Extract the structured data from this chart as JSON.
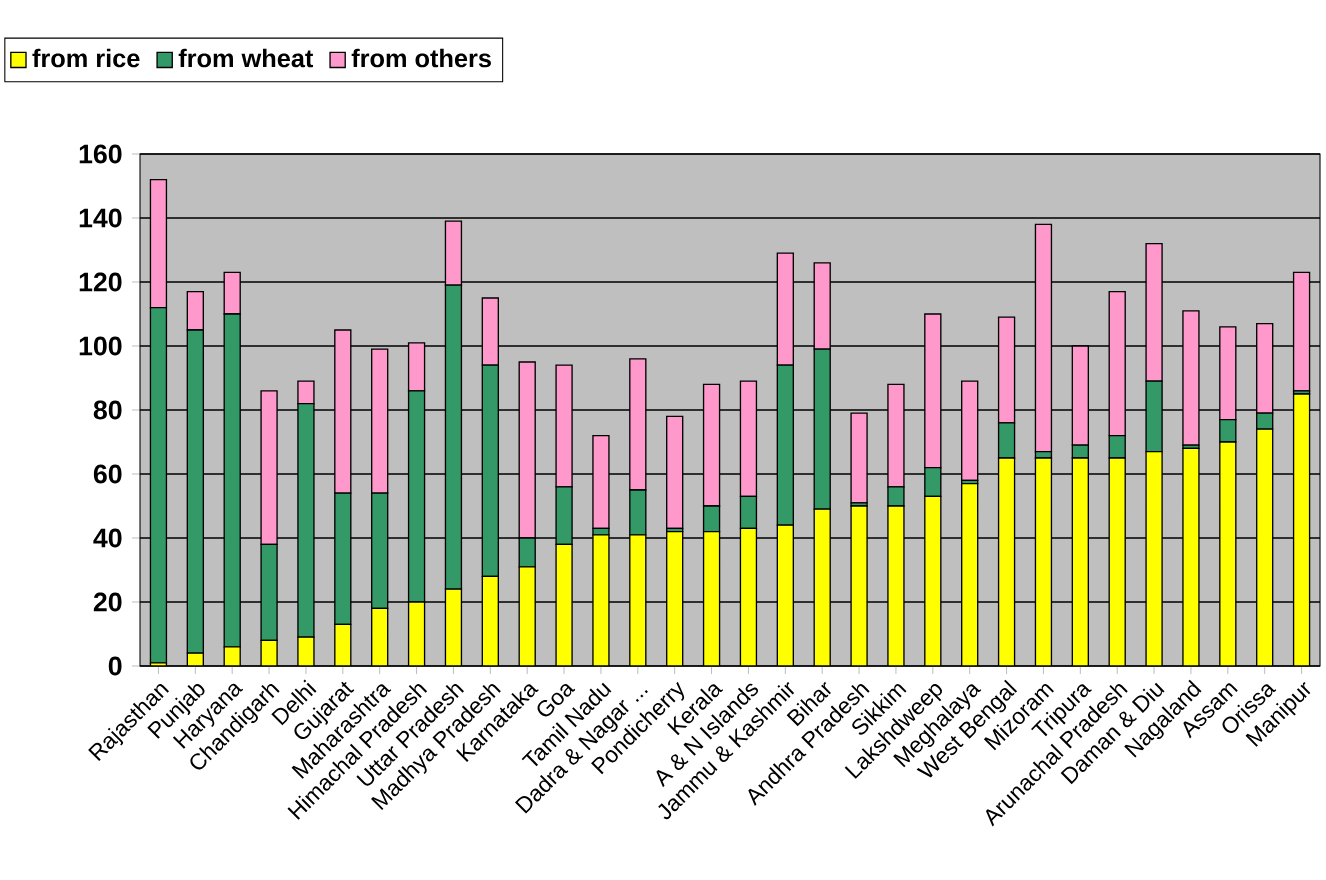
{
  "chart_data": {
    "type": "bar",
    "stacked": true,
    "categories": [
      "Rajasthan",
      "Punjab",
      "Haryana",
      "Chandigarh",
      "Delhi",
      "Gujarat",
      "Maharashtra",
      "Himachal Pradesh",
      "Uttar Pradesh",
      "Madhya Pradesh",
      "Karnataka",
      "Goa",
      "Tamil Nadu",
      "Dadra & Nagar ...",
      "Pondicherry",
      "Kerala",
      "A & N Islands",
      "Jammu & Kashmir",
      "Bihar",
      "Andhra Pradesh",
      "Sikkim",
      "Lakshdweep",
      "Meghalaya",
      "West Bengal",
      "Mizoram",
      "Tripura",
      "Arunachal Pradesh",
      "Daman & Diu",
      "Nagaland",
      "Assam",
      "Orissa",
      "Manipur"
    ],
    "series": [
      {
        "name": "from rice",
        "color": "#ffff00",
        "values": [
          1,
          4,
          6,
          8,
          9,
          13,
          18,
          20,
          24,
          28,
          31,
          38,
          41,
          41,
          42,
          42,
          43,
          44,
          49,
          50,
          50,
          53,
          57,
          65,
          65,
          65,
          65,
          67,
          68,
          70,
          74,
          85
        ]
      },
      {
        "name": "from wheat",
        "color": "#339966",
        "values": [
          111,
          101,
          104,
          30,
          73,
          41,
          36,
          66,
          95,
          66,
          9,
          18,
          2,
          14,
          1,
          8,
          10,
          50,
          50,
          1,
          6,
          9,
          1,
          11,
          2,
          4,
          7,
          22,
          1,
          7,
          5,
          1
        ]
      },
      {
        "name": "from others",
        "color": "#ff99cc",
        "values": [
          40,
          12,
          13,
          48,
          7,
          51,
          45,
          15,
          20,
          21,
          55,
          38,
          29,
          41,
          35,
          38,
          36,
          35,
          27,
          28,
          32,
          48,
          31,
          33,
          71,
          31,
          45,
          43,
          42,
          29,
          28,
          37
        ]
      }
    ],
    "ylim": [
      0,
      160
    ],
    "yticks": [
      0,
      20,
      40,
      60,
      80,
      100,
      120,
      140,
      160
    ],
    "grid": "y",
    "legend": "top left"
  }
}
